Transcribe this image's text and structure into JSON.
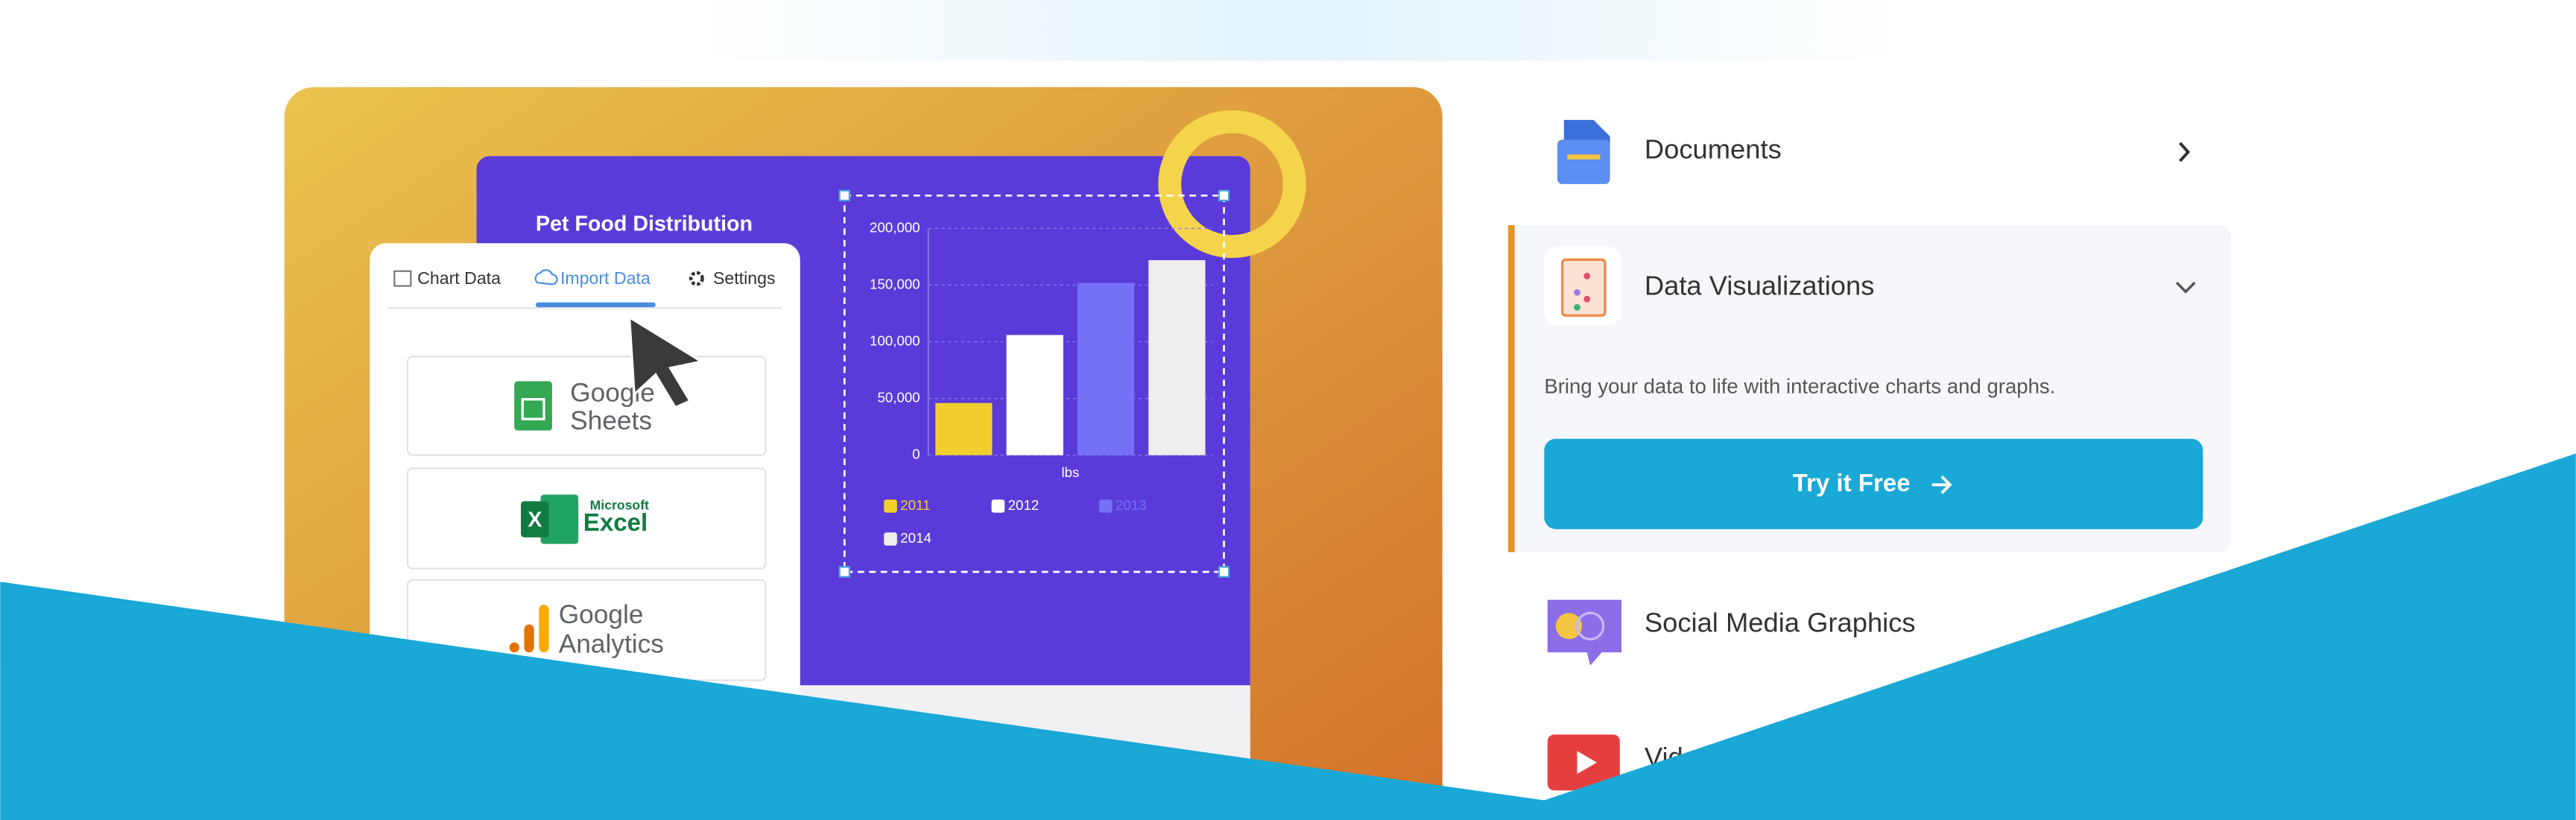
{
  "preview": {
    "title": "Pet Food Distribution",
    "tabs": [
      "Chart Data",
      "Import Data",
      "Settings"
    ],
    "sources": [
      {
        "name": "Google",
        "sub": "Sheets"
      },
      {
        "brand": "Microsoft",
        "name": "Excel"
      },
      {
        "name": "Google",
        "sub": "Analytics"
      }
    ],
    "chart": {
      "type": "bar",
      "x_label": "lbs",
      "series": [
        {
          "name": "2011",
          "color": "#f2cf2e",
          "values": [
            46000
          ]
        },
        {
          "name": "2012",
          "color": "#ffffff",
          "values": [
            106000
          ]
        },
        {
          "name": "2013",
          "color": "#7570f5",
          "values": [
            152000
          ]
        },
        {
          "name": "2014",
          "color": "#eeeeee",
          "values": [
            172000
          ]
        }
      ],
      "ylim": [
        0,
        200000
      ],
      "yticks": [
        0,
        {
          "value": 50000,
          "label": "50,000"
        },
        {
          "value": 100000,
          "label": "100,000"
        },
        {
          "value": 150000,
          "label": "150,000"
        },
        {
          "value": 200000,
          "label": "200,000"
        }
      ],
      "grid": true
    }
  },
  "menu": {
    "items": [
      {
        "label": "Documents"
      },
      {
        "label": "Data Visualizations",
        "description": "Bring your data to life with interactive charts and graphs.",
        "button": "Try it Free"
      },
      {
        "label": "Social Media Graphics"
      },
      {
        "label": "Videos"
      }
    ]
  }
}
